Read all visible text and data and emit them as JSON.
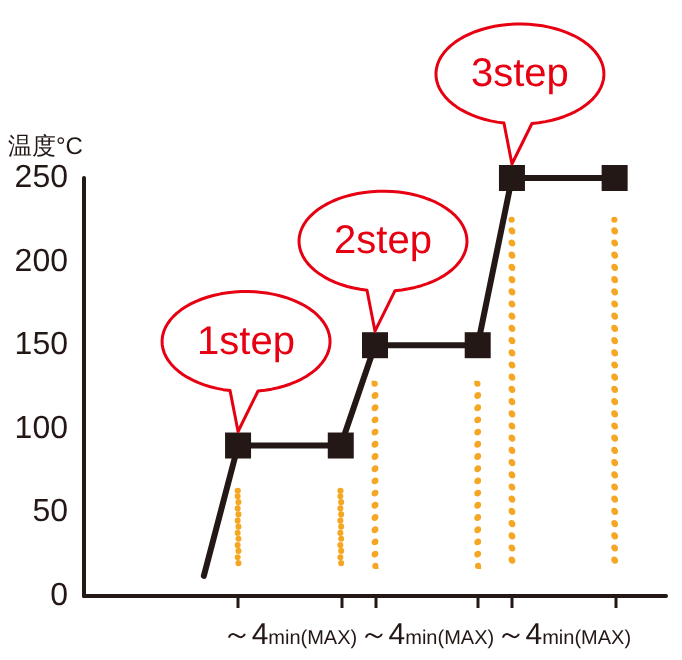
{
  "chart_data": {
    "type": "line",
    "ylabel": "温度°C",
    "categories": [
      null,
      null,
      null,
      null,
      null,
      null,
      null,
      null,
      null,
      null,
      null,
      null,
      "～4min(MAX)",
      null,
      null,
      null,
      null,
      null,
      null,
      null,
      "～4min(MAX)",
      null,
      null,
      null,
      null,
      null,
      null,
      null,
      "～4min(MAX)",
      null,
      null,
      null,
      null,
      null,
      null
    ],
    "series": [
      {
        "color": "#231815",
        "marker": "none",
        "values": [
          null,
          null,
          null,
          null,
          null,
          null,
          null,
          12,
          null,
          90,
          null,
          null,
          null,
          null,
          null,
          null,
          null,
          null,
          null,
          null,
          null,
          null,
          null,
          null,
          null,
          null,
          null,
          null,
          null,
          null,
          null,
          null,
          null,
          null,
          null
        ]
      },
      {
        "color": "#231815",
        "marker": "square",
        "values": [
          null,
          null,
          null,
          null,
          null,
          null,
          null,
          null,
          null,
          90,
          null,
          null,
          null,
          null,
          null,
          90,
          null,
          150,
          null,
          null,
          null,
          null,
          null,
          150,
          null,
          250,
          null,
          null,
          null,
          null,
          null,
          250,
          null,
          null,
          null
        ]
      },
      {
        "type": "bar",
        "color": "#f5a623",
        "line_style": "dotted",
        "values": [
          null,
          null,
          null,
          null,
          null,
          null,
          null,
          null,
          null,
          45,
          null,
          null,
          null,
          null,
          null,
          45,
          null,
          109,
          null,
          null,
          null,
          null,
          null,
          109,
          null,
          207,
          null,
          null,
          null,
          null,
          null,
          207,
          null,
          null,
          null
        ],
        "base": [
          null,
          null,
          null,
          null,
          null,
          null,
          null,
          null,
          null,
          18,
          null,
          null,
          null,
          null,
          null,
          18,
          null,
          18,
          null,
          null,
          null,
          null,
          null,
          18,
          null,
          18,
          null,
          null,
          null,
          null,
          null,
          18,
          null,
          null,
          null
        ]
      }
    ],
    "line_style": "solid",
    "ylim": [
      0,
      250
    ],
    "yticks": [
      0,
      50,
      100,
      150,
      200,
      250
    ],
    "annotations": [
      {
        "text": "1step",
        "y": 90
      },
      {
        "text": "2step",
        "y": 150
      },
      {
        "text": "3step",
        "y": 250
      }
    ],
    "grid": false
  }
}
